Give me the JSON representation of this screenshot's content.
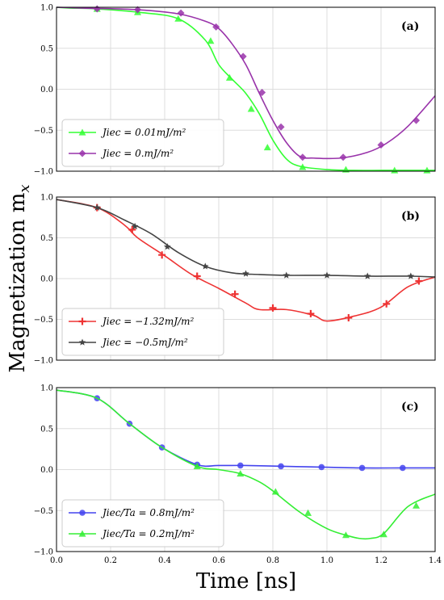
{
  "figure": {
    "ylabel": "Magnetization m",
    "ylabel_sub": "x",
    "xlabel": "Time [ns]"
  },
  "chart_data": [
    {
      "type": "line",
      "panel_label": "(a)",
      "xlim": [
        0,
        1.4
      ],
      "ylim": [
        -1,
        1
      ],
      "x_ticks": [
        "0.0",
        "0.2",
        "0.4",
        "0.6",
        "0.8",
        "1.0",
        "1.2",
        "1.4"
      ],
      "y_ticks": [
        "1.0",
        "0.5",
        "0.0",
        "−0.5",
        "−1.0"
      ],
      "y_tick_values": [
        1,
        0.5,
        0,
        -0.5,
        -1
      ],
      "grid": true,
      "legend_position": "bottom-left",
      "series": [
        {
          "name": "J_iec = 0.01mJ/m^2",
          "legend_label": "Jiec = 0.01mJ/m²",
          "color": "#33ff33",
          "marker": "triangle",
          "x": [
            0,
            0.05,
            0.15,
            0.3,
            0.45,
            0.55,
            0.6,
            0.65,
            0.7,
            0.75,
            0.8,
            0.85,
            0.9,
            1.0,
            1.1,
            1.2,
            1.3,
            1.4
          ],
          "y": [
            1.0,
            0.99,
            0.98,
            0.94,
            0.86,
            0.6,
            0.3,
            0.12,
            -0.05,
            -0.3,
            -0.62,
            -0.85,
            -0.94,
            -0.98,
            -0.99,
            -0.99,
            -0.99,
            -0.99
          ],
          "marker_x": [
            0.15,
            0.3,
            0.45,
            0.57,
            0.64,
            0.72,
            0.78,
            0.91,
            1.07,
            1.25,
            1.37
          ],
          "marker_y": [
            0.98,
            0.94,
            0.86,
            0.59,
            0.14,
            -0.24,
            -0.71,
            -0.95,
            -0.98,
            -0.99,
            -0.99
          ]
        },
        {
          "name": "J_iec = 0.mJ/m^2",
          "legend_label": "Jiec = 0.mJ/m²",
          "color": "#9933aa",
          "marker": "diamond",
          "x": [
            0,
            0.1,
            0.3,
            0.45,
            0.55,
            0.6,
            0.65,
            0.7,
            0.75,
            0.8,
            0.85,
            0.9,
            0.95,
            1.05,
            1.15,
            1.22,
            1.3,
            1.4
          ],
          "y": [
            1.0,
            0.99,
            0.97,
            0.92,
            0.83,
            0.74,
            0.55,
            0.3,
            -0.05,
            -0.38,
            -0.65,
            -0.82,
            -0.84,
            -0.84,
            -0.77,
            -0.66,
            -0.45,
            -0.08
          ],
          "marker_x": [
            0.15,
            0.3,
            0.46,
            0.59,
            0.69,
            0.76,
            0.83,
            0.91,
            1.06,
            1.2,
            1.33
          ],
          "marker_y": [
            0.98,
            0.97,
            0.93,
            0.76,
            0.4,
            -0.04,
            -0.46,
            -0.83,
            -0.83,
            -0.68,
            -0.38
          ]
        }
      ]
    },
    {
      "type": "line",
      "panel_label": "(b)",
      "xlim": [
        0,
        1.4
      ],
      "ylim": [
        -1,
        1
      ],
      "x_ticks": [
        "0.0",
        "0.2",
        "0.4",
        "0.6",
        "0.8",
        "1.0",
        "1.2",
        "1.4"
      ],
      "y_ticks": [
        "1.0",
        "0.5",
        "0.0",
        "−0.5",
        "−1.0"
      ],
      "y_tick_values": [
        1,
        0.5,
        0,
        -0.5,
        -1
      ],
      "grid": true,
      "legend_position": "bottom-left",
      "series": [
        {
          "name": "J_iec = -1.32mJ/m^2",
          "legend_label": "Jiec = −1.32mJ/m²",
          "color": "#ee3333",
          "marker": "plus",
          "x": [
            0,
            0.15,
            0.25,
            0.3,
            0.4,
            0.5,
            0.6,
            0.7,
            0.75,
            0.85,
            0.95,
            1.0,
            1.1,
            1.2,
            1.3,
            1.4
          ],
          "y": [
            0.97,
            0.87,
            0.66,
            0.5,
            0.28,
            0.05,
            -0.12,
            -0.3,
            -0.38,
            -0.38,
            -0.45,
            -0.52,
            -0.46,
            -0.35,
            -0.1,
            0.02
          ],
          "marker_x": [
            0.15,
            0.28,
            0.39,
            0.52,
            0.66,
            0.8,
            0.94,
            1.08,
            1.22,
            1.34
          ],
          "marker_y": [
            0.87,
            0.6,
            0.29,
            0.03,
            -0.19,
            -0.36,
            -0.43,
            -0.48,
            -0.31,
            -0.03
          ]
        },
        {
          "name": "J_iec = -0.5mJ/m^2",
          "legend_label": "Jiec = −0.5mJ/m²",
          "color": "#444444",
          "marker": "star",
          "x": [
            0,
            0.15,
            0.25,
            0.35,
            0.45,
            0.55,
            0.65,
            0.75,
            0.85,
            1.0,
            1.15,
            1.3,
            1.4
          ],
          "y": [
            0.97,
            0.87,
            0.72,
            0.55,
            0.32,
            0.15,
            0.07,
            0.05,
            0.04,
            0.04,
            0.03,
            0.03,
            0.02
          ],
          "marker_x": [
            0.15,
            0.29,
            0.41,
            0.55,
            0.7,
            0.85,
            1.0,
            1.15,
            1.31
          ],
          "marker_y": [
            0.87,
            0.64,
            0.39,
            0.15,
            0.06,
            0.04,
            0.04,
            0.03,
            0.03
          ]
        }
      ]
    },
    {
      "type": "line",
      "panel_label": "(c)",
      "xlim": [
        0,
        1.4
      ],
      "ylim": [
        -1,
        1
      ],
      "x_ticks": [
        "0.0",
        "0.2",
        "0.4",
        "0.6",
        "0.8",
        "1.0",
        "1.2",
        "1.4"
      ],
      "y_ticks": [
        "1.0",
        "0.5",
        "0.0",
        "−0.5",
        "−1.0"
      ],
      "y_tick_values": [
        1,
        0.5,
        0,
        -0.5,
        -1
      ],
      "grid": true,
      "legend_position": "bottom-left",
      "series": [
        {
          "name": "J_iec/Ta = 0.8mJ/m^2",
          "legend_label": "Jiec/Ta = 0.8mJ/m²",
          "color": "#4444ee",
          "marker": "circle",
          "x": [
            0,
            0.15,
            0.27,
            0.39,
            0.52,
            0.6,
            0.7,
            0.84,
            0.98,
            1.13,
            1.28,
            1.4
          ],
          "y": [
            0.97,
            0.87,
            0.56,
            0.27,
            0.06,
            0.05,
            0.05,
            0.04,
            0.03,
            0.02,
            0.02,
            0.02
          ],
          "marker_x": [
            0.15,
            0.27,
            0.39,
            0.52,
            0.68,
            0.83,
            0.98,
            1.13,
            1.28
          ],
          "marker_y": [
            0.87,
            0.56,
            0.27,
            0.06,
            0.05,
            0.04,
            0.03,
            0.02,
            0.02
          ]
        },
        {
          "name": "J_iec/Ta = 0.2mJ/m^2",
          "legend_label": "Jiec/Ta = 0.2mJ/m²",
          "color": "#33ee33",
          "marker": "triangle",
          "x": [
            0,
            0.15,
            0.27,
            0.39,
            0.52,
            0.6,
            0.68,
            0.75,
            0.8,
            0.9,
            1.0,
            1.07,
            1.12,
            1.16,
            1.21,
            1.3,
            1.4
          ],
          "y": [
            0.97,
            0.87,
            0.56,
            0.27,
            0.04,
            0.0,
            -0.05,
            -0.15,
            -0.26,
            -0.52,
            -0.72,
            -0.8,
            -0.84,
            -0.84,
            -0.78,
            -0.45,
            -0.3
          ],
          "marker_x": [
            0.52,
            0.68,
            0.81,
            0.93,
            1.07,
            1.21,
            1.33
          ],
          "marker_y": [
            0.04,
            -0.05,
            -0.27,
            -0.53,
            -0.8,
            -0.79,
            -0.44
          ]
        }
      ]
    }
  ]
}
